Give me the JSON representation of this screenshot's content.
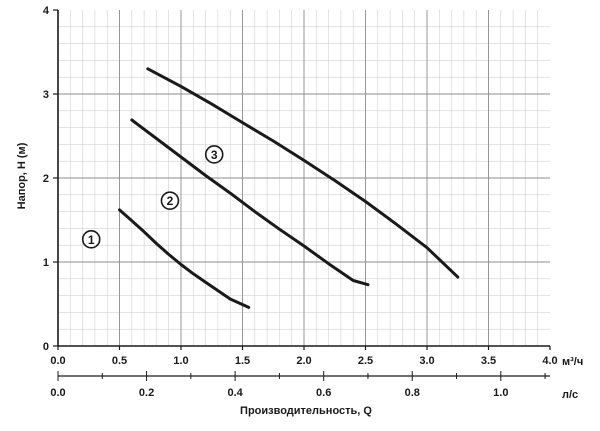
{
  "chart_data": {
    "type": "line",
    "title": "",
    "xlabel": "Производительность, Q",
    "ylabel": "Напор, H (м)",
    "x_unit": "м³/ч",
    "x2_unit": "л/с",
    "xlim": [
      0,
      4
    ],
    "ylim": [
      0,
      4
    ],
    "x2lim": [
      0,
      1.1111
    ],
    "grid": true,
    "x_ticks": [
      "0.0",
      "0.5",
      "1.0",
      "1.5",
      "2.0",
      "2.5",
      "3.0",
      "3.5",
      "4.0"
    ],
    "x2_ticks": [
      {
        "value": 0.0,
        "label": "0.0"
      },
      {
        "value": 0.2,
        "label": "0.2"
      },
      {
        "value": 0.4,
        "label": "0.4"
      },
      {
        "value": 0.6,
        "label": "0.6"
      },
      {
        "value": 0.8,
        "label": "0.8"
      },
      {
        "value": 1.0,
        "label": "1.0"
      }
    ],
    "y_ticks": [
      "0",
      "1",
      "2",
      "3",
      "4"
    ],
    "series": [
      {
        "name": "1",
        "label_at": [
          0.27,
          1.27
        ],
        "points": [
          [
            0.5,
            1.62
          ],
          [
            0.6,
            1.49
          ],
          [
            0.7,
            1.36
          ],
          [
            0.8,
            1.22
          ],
          [
            0.9,
            1.09
          ],
          [
            1.0,
            0.97
          ],
          [
            1.1,
            0.86
          ],
          [
            1.2,
            0.76
          ],
          [
            1.3,
            0.66
          ],
          [
            1.4,
            0.56
          ],
          [
            1.55,
            0.46
          ]
        ]
      },
      {
        "name": "2",
        "label_at": [
          0.91,
          1.73
        ],
        "points": [
          [
            0.6,
            2.69
          ],
          [
            0.8,
            2.47
          ],
          [
            1.0,
            2.25
          ],
          [
            1.2,
            2.03
          ],
          [
            1.4,
            1.82
          ],
          [
            1.6,
            1.6
          ],
          [
            1.8,
            1.39
          ],
          [
            2.0,
            1.19
          ],
          [
            2.2,
            0.98
          ],
          [
            2.4,
            0.78
          ],
          [
            2.52,
            0.73
          ]
        ]
      },
      {
        "name": "3",
        "label_at": [
          1.27,
          2.28
        ],
        "points": [
          [
            0.73,
            3.3
          ],
          [
            1.0,
            3.09
          ],
          [
            1.25,
            2.88
          ],
          [
            1.5,
            2.66
          ],
          [
            1.75,
            2.44
          ],
          [
            2.0,
            2.21
          ],
          [
            2.25,
            1.97
          ],
          [
            2.5,
            1.72
          ],
          [
            2.75,
            1.45
          ],
          [
            3.0,
            1.17
          ],
          [
            3.25,
            0.82
          ]
        ]
      }
    ]
  },
  "colors": {
    "grid": "#c8c8c8",
    "axis": "#1a1a1a",
    "curve": "#1a1a1a",
    "marker_fill": "#ffffff"
  }
}
